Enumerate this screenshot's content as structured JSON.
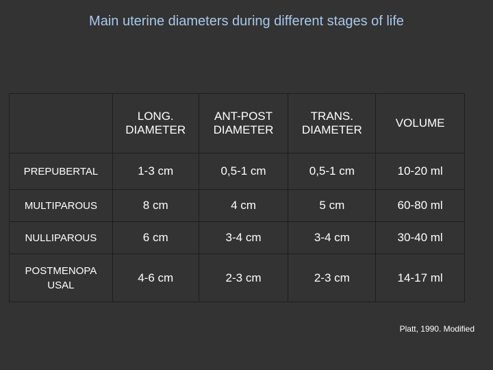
{
  "title": "Main uterine diameters during different stages of life",
  "table": {
    "columns": [
      "LONG. DIAMETER",
      "ANT-POST DIAMETER",
      "TRANS. DIAMETER",
      "VOLUME"
    ],
    "column_lines": [
      [
        "LONG.",
        "DIAMETER"
      ],
      [
        "ANT-POST",
        "DIAMETER"
      ],
      [
        "TRANS.",
        "DIAMETER"
      ],
      [
        "VOLUME"
      ]
    ],
    "rows": [
      {
        "label": "PREPUBERTAL",
        "cells": [
          "1-3 cm",
          "0,5-1 cm",
          "0,5-1 cm",
          "10-20 ml"
        ]
      },
      {
        "label": "MULTIPAROUS",
        "cells": [
          "8 cm",
          "4 cm",
          "5 cm",
          "60-80 ml"
        ]
      },
      {
        "label": "NULLIPAROUS",
        "cells": [
          "6 cm",
          "3-4 cm",
          "3-4 cm",
          "30-40 ml"
        ]
      },
      {
        "label": "POSTMENOPAUSAL",
        "label_lines": [
          "POSTMENOPA",
          "USAL"
        ],
        "cells": [
          "4-6 cm",
          "2-3 cm",
          "2-3 cm",
          "14-17 ml"
        ]
      }
    ]
  },
  "source": "Platt, 1990. Modified"
}
